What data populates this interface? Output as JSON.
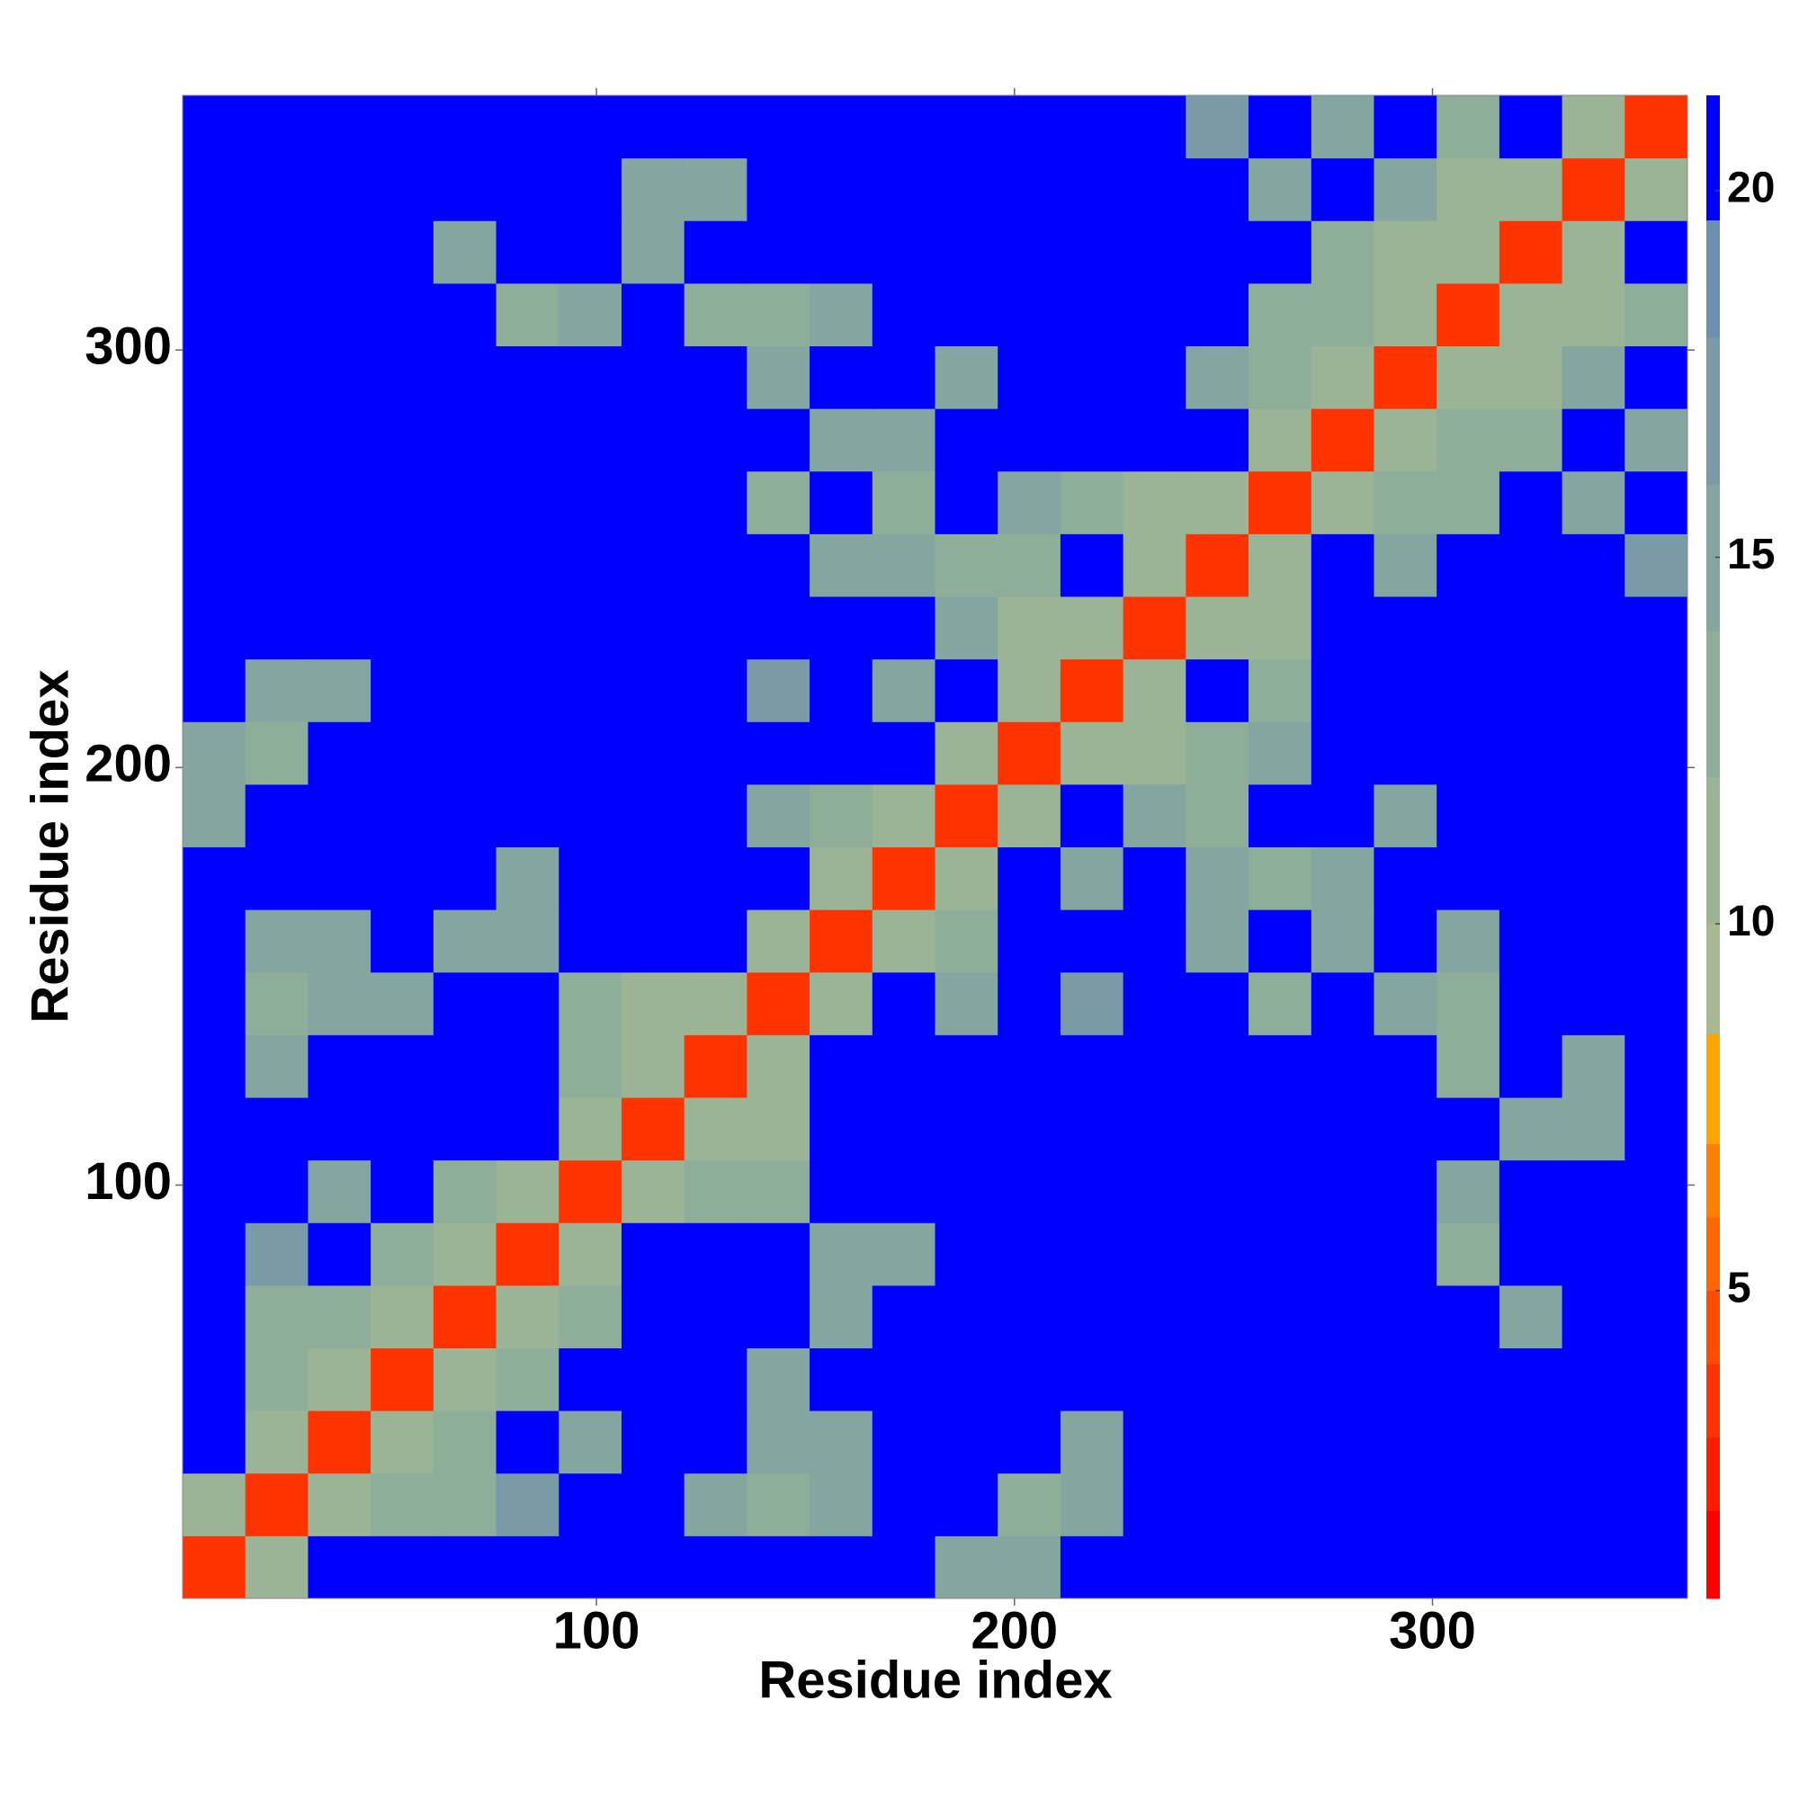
{
  "chart_data": {
    "type": "heatmap",
    "xlabel": "Residue index",
    "ylabel": "Residue index",
    "bins": [
      1,
      16,
      31,
      46,
      61,
      76,
      91,
      106,
      121,
      136,
      151,
      166,
      181,
      196,
      211,
      226,
      241,
      256,
      271,
      286,
      301,
      316,
      331,
      346,
      361
    ],
    "xlim": [
      1,
      361
    ],
    "ylim": [
      1,
      361
    ],
    "xticks": [
      100,
      200,
      300
    ],
    "yticks": [
      100,
      200,
      300
    ],
    "z": [
      [
        3,
        10,
        21,
        21,
        21,
        21,
        21,
        21,
        21,
        21,
        21,
        21,
        14,
        15,
        21,
        21,
        21,
        21,
        21,
        21,
        21,
        21,
        21,
        21
      ],
      [
        10,
        3,
        10,
        12,
        13,
        16,
        21,
        21,
        14,
        13,
        14,
        21,
        21,
        13,
        15,
        21,
        21,
        21,
        21,
        21,
        21,
        21,
        21,
        21
      ],
      [
        21,
        10,
        3,
        10,
        12,
        21,
        14,
        21,
        21,
        15,
        14,
        21,
        21,
        21,
        15,
        21,
        21,
        21,
        21,
        21,
        21,
        21,
        21,
        21
      ],
      [
        21,
        12,
        10,
        3,
        10,
        12,
        21,
        21,
        21,
        14,
        21,
        21,
        21,
        21,
        21,
        21,
        21,
        21,
        21,
        21,
        21,
        21,
        21,
        21
      ],
      [
        21,
        13,
        12,
        10,
        3,
        10,
        12,
        21,
        21,
        21,
        14,
        21,
        21,
        21,
        21,
        21,
        21,
        21,
        21,
        21,
        21,
        14,
        21,
        21
      ],
      [
        21,
        16,
        21,
        12,
        10,
        3,
        10,
        21,
        21,
        21,
        15,
        14,
        21,
        21,
        21,
        21,
        21,
        21,
        21,
        21,
        13,
        21,
        21,
        21
      ],
      [
        21,
        21,
        14,
        21,
        12,
        10,
        3,
        10,
        12,
        13,
        21,
        21,
        21,
        21,
        21,
        21,
        21,
        21,
        21,
        21,
        14,
        21,
        21,
        21
      ],
      [
        21,
        21,
        21,
        21,
        21,
        21,
        10,
        3,
        10,
        11,
        21,
        21,
        21,
        21,
        21,
        21,
        21,
        21,
        21,
        21,
        21,
        15,
        14,
        21
      ],
      [
        21,
        14,
        21,
        21,
        21,
        21,
        12,
        10,
        3,
        10,
        21,
        21,
        21,
        21,
        21,
        21,
        21,
        21,
        21,
        21,
        13,
        21,
        14,
        21
      ],
      [
        21,
        13,
        15,
        14,
        21,
        21,
        13,
        11,
        10,
        3,
        10,
        21,
        14,
        21,
        16,
        21,
        21,
        13,
        21,
        14,
        13,
        21,
        21,
        21
      ],
      [
        21,
        14,
        14,
        21,
        14,
        15,
        21,
        21,
        21,
        10,
        3,
        10,
        13,
        21,
        21,
        21,
        14,
        21,
        14,
        21,
        14,
        21,
        21,
        21
      ],
      [
        21,
        21,
        21,
        21,
        21,
        14,
        21,
        21,
        21,
        21,
        10,
        3,
        10,
        21,
        14,
        21,
        14,
        13,
        14,
        21,
        21,
        21,
        21,
        21
      ],
      [
        14,
        21,
        21,
        21,
        21,
        21,
        21,
        21,
        21,
        14,
        13,
        10,
        3,
        10,
        21,
        14,
        13,
        21,
        21,
        15,
        21,
        21,
        21,
        21
      ],
      [
        15,
        13,
        21,
        21,
        21,
        21,
        21,
        21,
        21,
        21,
        21,
        21,
        10,
        3,
        10,
        11,
        12,
        14,
        21,
        21,
        21,
        21,
        21,
        21
      ],
      [
        21,
        15,
        15,
        21,
        21,
        21,
        21,
        21,
        21,
        16,
        21,
        14,
        21,
        10,
        3,
        10,
        21,
        12,
        21,
        21,
        21,
        21,
        21,
        21
      ],
      [
        21,
        21,
        21,
        21,
        21,
        21,
        21,
        21,
        21,
        21,
        21,
        21,
        14,
        11,
        10,
        3,
        10,
        11,
        21,
        21,
        21,
        21,
        21,
        21
      ],
      [
        21,
        21,
        21,
        21,
        21,
        21,
        21,
        21,
        21,
        21,
        14,
        14,
        13,
        12,
        21,
        10,
        3,
        10,
        21,
        15,
        21,
        21,
        21,
        16
      ],
      [
        21,
        21,
        21,
        21,
        21,
        21,
        21,
        21,
        21,
        13,
        21,
        13,
        21,
        14,
        12,
        11,
        10,
        3,
        10,
        12,
        13,
        21,
        14,
        21
      ],
      [
        21,
        21,
        21,
        21,
        21,
        21,
        21,
        21,
        21,
        21,
        14,
        14,
        21,
        21,
        21,
        21,
        21,
        10,
        3,
        10,
        12,
        13,
        21,
        15
      ],
      [
        21,
        21,
        21,
        21,
        21,
        21,
        21,
        21,
        21,
        14,
        21,
        21,
        15,
        21,
        21,
        21,
        15,
        12,
        10,
        3,
        10,
        11,
        14,
        21
      ],
      [
        21,
        21,
        21,
        21,
        21,
        13,
        14,
        21,
        13,
        13,
        14,
        21,
        21,
        21,
        21,
        21,
        21,
        13,
        12,
        10,
        3,
        10,
        11,
        12
      ],
      [
        21,
        21,
        21,
        21,
        14,
        21,
        21,
        15,
        21,
        21,
        21,
        21,
        21,
        21,
        21,
        21,
        21,
        21,
        13,
        11,
        10,
        3,
        10,
        21
      ],
      [
        21,
        21,
        21,
        21,
        21,
        21,
        21,
        14,
        14,
        21,
        21,
        21,
        21,
        21,
        21,
        21,
        21,
        14,
        21,
        14,
        11,
        10,
        3,
        10
      ],
      [
        21,
        21,
        21,
        21,
        21,
        21,
        21,
        21,
        21,
        21,
        21,
        21,
        21,
        21,
        21,
        21,
        16,
        21,
        15,
        21,
        12,
        21,
        10,
        3
      ]
    ],
    "colorbar": {
      "lim": [
        0.8,
        21.3
      ],
      "ticks": [
        5,
        10,
        15,
        20
      ],
      "levels": [
        0.8,
        2,
        3,
        4,
        5,
        6,
        7,
        8.5,
        10,
        12,
        14,
        16,
        18,
        19.6,
        21.3
      ],
      "colors": [
        "#ff0000",
        "#ff1a00",
        "#ff3300",
        "#ff4d00",
        "#ff6600",
        "#ff8000",
        "#ffa500",
        "#a8b890",
        "#9cb496",
        "#8fae9a",
        "#85a5a0",
        "#7a9aa8",
        "#6e90b0",
        "#0000ff"
      ]
    }
  }
}
